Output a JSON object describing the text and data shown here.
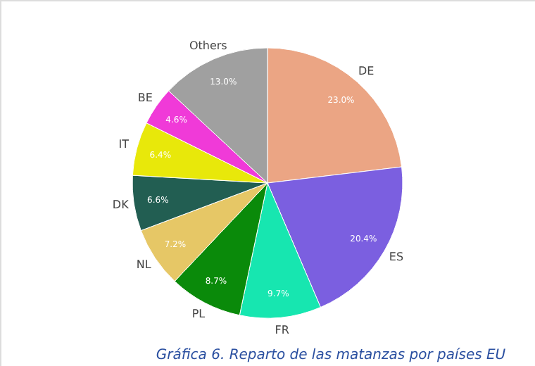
{
  "chart_data": {
    "type": "pie",
    "categories": [
      "DE",
      "ES",
      "FR",
      "PL",
      "NL",
      "DK",
      "IT",
      "BE",
      "Others"
    ],
    "values": [
      23.0,
      20.4,
      9.7,
      8.7,
      7.2,
      6.6,
      6.4,
      4.6,
      13.0
    ],
    "value_labels": [
      "23.0%",
      "20.4%",
      "9.7%",
      "8.7%",
      "7.2%",
      "6.6%",
      "6.4%",
      "4.6%",
      "13.0%"
    ],
    "colors": [
      "#eba584",
      "#7b5fe0",
      "#17e6b0",
      "#0a8a0a",
      "#e6c766",
      "#225e52",
      "#e8e80a",
      "#f03ad8",
      "#a0a0a0"
    ],
    "annotations": [
      "Gráfica 6. Reparto de las matanzas por países EU"
    ]
  }
}
